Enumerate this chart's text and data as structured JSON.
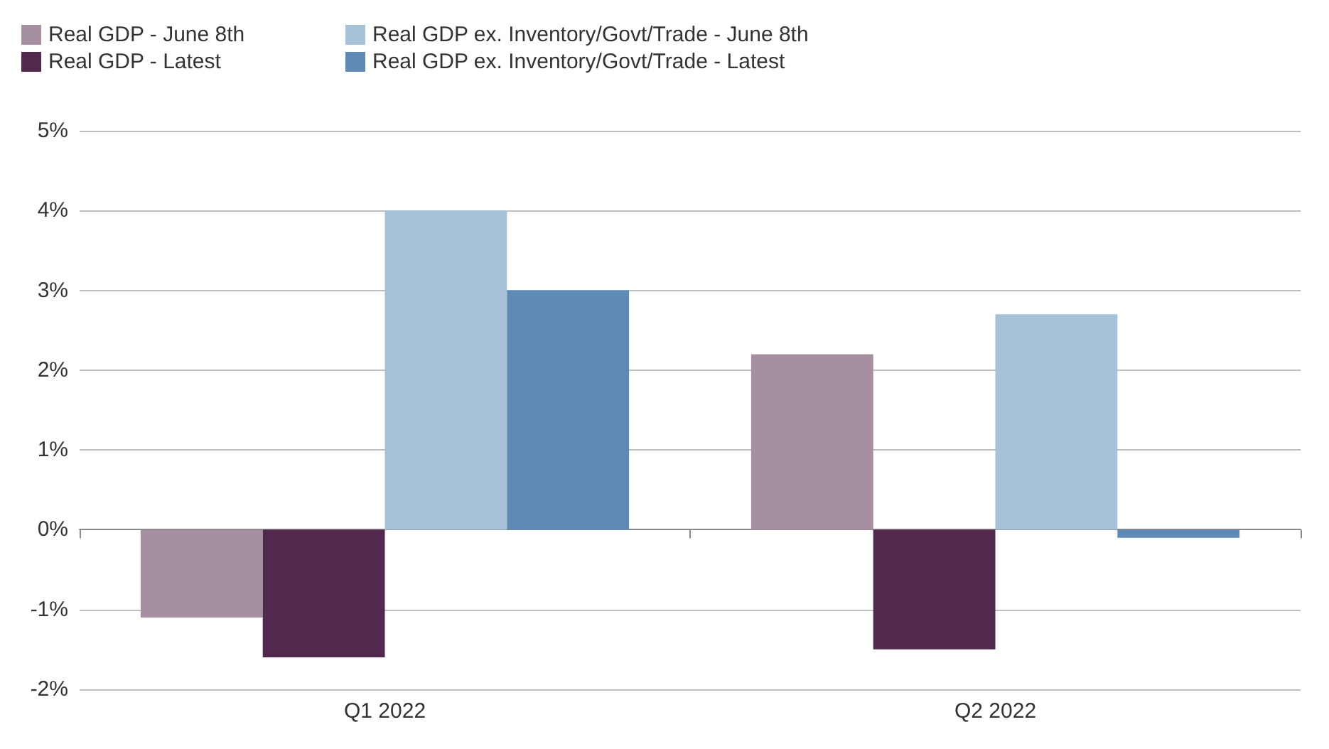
{
  "chart_data": {
    "type": "bar",
    "categories": [
      "Q1 2022",
      "Q2 2022"
    ],
    "series": [
      {
        "name": "Real GDP - June 8th",
        "color": "#a58fa0",
        "values": [
          -1.1,
          2.2
        ]
      },
      {
        "name": "Real GDP - Latest",
        "color": "#52284e",
        "values": [
          -1.6,
          -1.5
        ]
      },
      {
        "name": "Real GDP ex. Inventory/Govt/Trade - June 8th",
        "color": "#a7c2d8",
        "values": [
          4.0,
          2.7
        ]
      },
      {
        "name": "Real GDP ex. Inventory/Govt/Trade - Latest",
        "color": "#5f8ab5",
        "values": [
          3.0,
          -0.1
        ]
      }
    ],
    "ylim": [
      -2,
      5
    ],
    "yticks": [
      {
        "value": -2,
        "label": "-2%"
      },
      {
        "value": -1,
        "label": "-1%"
      },
      {
        "value": 0,
        "label": "0%"
      },
      {
        "value": 1,
        "label": "1%"
      },
      {
        "value": 2,
        "label": "2%"
      },
      {
        "value": 3,
        "label": "3%"
      },
      {
        "value": 4,
        "label": "4%"
      },
      {
        "value": 5,
        "label": "5%"
      }
    ],
    "grid": "y",
    "legend": "top left"
  }
}
